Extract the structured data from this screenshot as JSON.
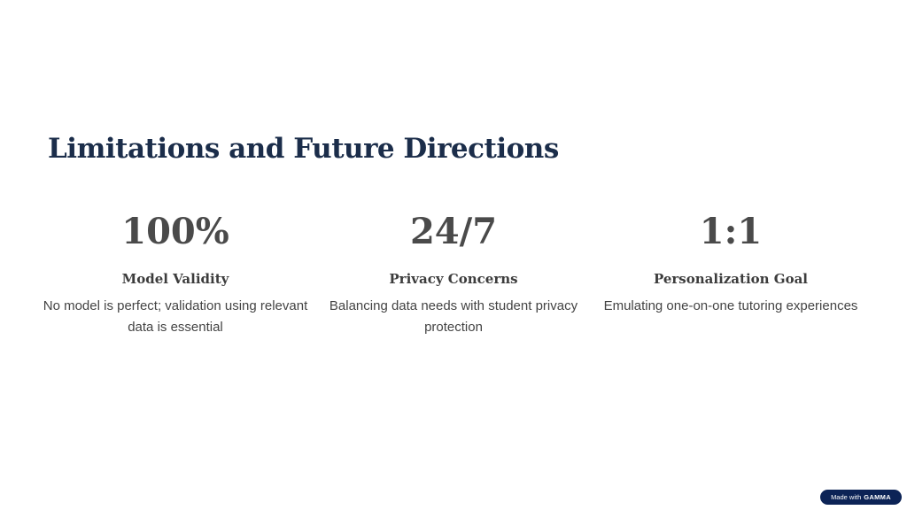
{
  "title": "Limitations and Future Directions",
  "stats": [
    {
      "value": "100%",
      "label": "Model Validity",
      "description": "No model is perfect; validation using relevant data is essential"
    },
    {
      "value": "24/7",
      "label": "Privacy Concerns",
      "description": "Balancing data needs with student privacy protection"
    },
    {
      "value": "1:1",
      "label": "Personalization Goal",
      "description": "Emulating one-on-one tutoring experiences"
    }
  ],
  "badge": {
    "prefix": "Made with",
    "brand": "GAMMA"
  }
}
